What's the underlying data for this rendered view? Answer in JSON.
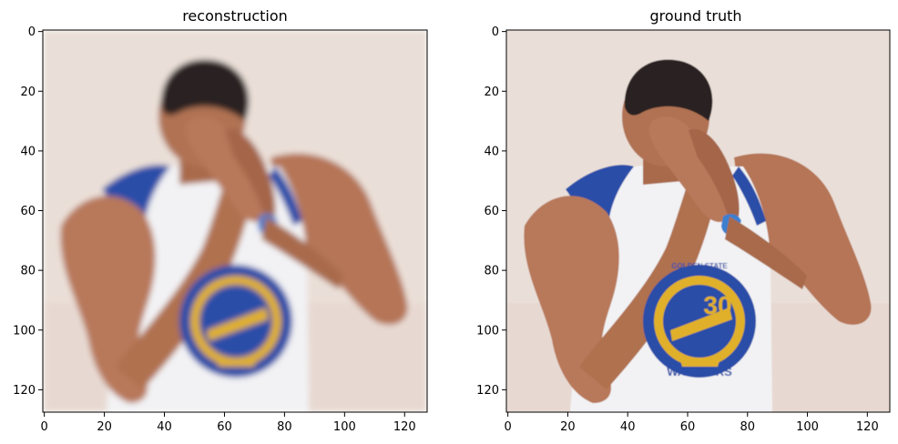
{
  "panels": [
    {
      "title": "reconstruction",
      "x_ticks": [
        "0",
        "20",
        "40",
        "60",
        "80",
        "100",
        "120"
      ],
      "y_ticks": [
        "0",
        "20",
        "40",
        "60",
        "80",
        "100",
        "120"
      ],
      "axis_range": [
        0,
        127
      ],
      "jersey_number": ""
    },
    {
      "title": "ground truth",
      "x_ticks": [
        "0",
        "20",
        "40",
        "60",
        "80",
        "100",
        "120"
      ],
      "y_ticks": [
        "0",
        "20",
        "40",
        "60",
        "80",
        "100",
        "120"
      ],
      "axis_range": [
        0,
        127
      ],
      "jersey_number": "30",
      "jersey_team_text": "WARRIORS",
      "jersey_top_text": "GOLDEN STATE"
    }
  ],
  "colors": {
    "background": "#eadfd8",
    "skin": "#b8785a",
    "hair": "#2a2420",
    "jersey": "#f2f2f4",
    "trim_blue": "#2b4ea8",
    "logo_gold": "#e0b02a"
  }
}
